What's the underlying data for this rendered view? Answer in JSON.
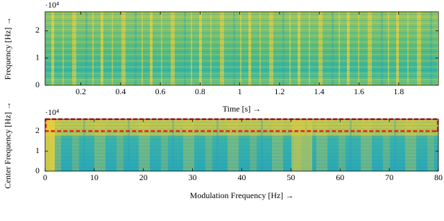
{
  "chart_data": [
    {
      "type": "heatmap",
      "y_label": "Frequency [Hz] →",
      "x_label": "Time [s] →",
      "y_scale_label": "·10⁴",
      "xlim": [
        0.02,
        2
      ],
      "xticks": [
        0.2,
        0.4,
        0.6,
        0.8,
        1,
        1.2,
        1.4,
        1.6,
        1.8
      ],
      "ylim": [
        0,
        2.7
      ],
      "yticks": [
        0,
        1,
        2
      ]
    },
    {
      "type": "heatmap",
      "y_label": "Center Frequency [Hz] →",
      "x_label": "Modulation Frequency [Hz] →",
      "y_scale_label": "·10⁴",
      "xlim": [
        0,
        80
      ],
      "xticks": [
        0,
        10,
        20,
        30,
        40,
        50,
        60,
        70,
        80
      ],
      "ylim": [
        0,
        2.6
      ],
      "yticks": [
        0,
        1,
        2
      ],
      "highlight": {
        "y": [
          2,
          2.6
        ],
        "color": "#e02020"
      }
    }
  ]
}
